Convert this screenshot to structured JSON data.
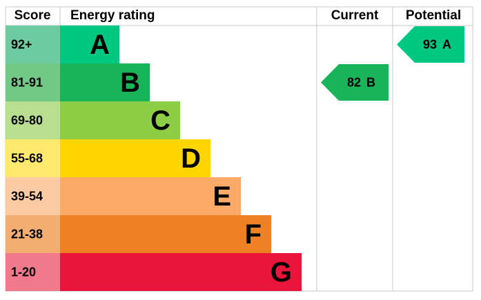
{
  "header": {
    "score": "Score",
    "rating": "Energy rating",
    "current": "Current",
    "potential": "Potential"
  },
  "bands": [
    {
      "score": "92+",
      "rating": "A",
      "color": "#00c781",
      "score_color": "#6fcba0"
    },
    {
      "score": "81-91",
      "rating": "B",
      "color": "#19b459",
      "score_color": "#72c986"
    },
    {
      "score": "69-80",
      "rating": "C",
      "color": "#8dce46",
      "score_color": "#b8df8d"
    },
    {
      "score": "55-68",
      "rating": "D",
      "color": "#ffd500",
      "score_color": "#ffe86e"
    },
    {
      "score": "39-54",
      "rating": "E",
      "color": "#fcaa65",
      "score_color": "#fdcba3"
    },
    {
      "score": "21-38",
      "rating": "F",
      "color": "#ef8023",
      "score_color": "#f4ad70"
    },
    {
      "score": "1-20",
      "rating": "G",
      "color": "#e9153b",
      "score_color": "#f07a8c"
    }
  ],
  "current": {
    "value": 82,
    "rating": "B"
  },
  "potential": {
    "value": 93,
    "rating": "A"
  }
}
